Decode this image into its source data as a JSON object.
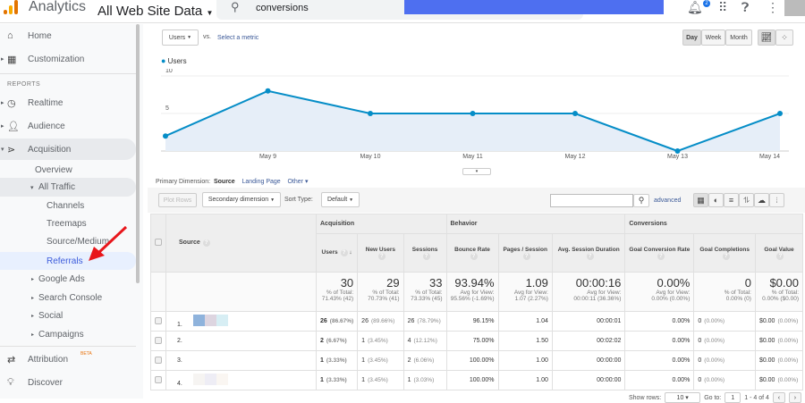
{
  "header": {
    "app_name": "Analytics",
    "property": "All Web Site Data",
    "search_value": "conversions",
    "notification_count": "2"
  },
  "sidebar": {
    "home": "Home",
    "customization": "Customization",
    "reports_heading": "REPORTS",
    "realtime": "Realtime",
    "audience": "Audience",
    "acquisition": "Acquisition",
    "overview": "Overview",
    "all_traffic": "All Traffic",
    "channels": "Channels",
    "treemaps": "Treemaps",
    "source_medium": "Source/Medium",
    "referrals": "Referrals",
    "google_ads": "Google Ads",
    "search_console": "Search Console",
    "social": "Social",
    "campaigns": "Campaigns",
    "attribution": "Attribution",
    "beta": "BETA",
    "discover": "Discover"
  },
  "controls": {
    "metric": "Users",
    "vs": "vs.",
    "select_metric": "Select a metric",
    "day": "Day",
    "week": "Week",
    "month": "Month"
  },
  "chart_data": {
    "type": "area",
    "series": [
      {
        "name": "Users",
        "values": [
          2,
          8,
          5,
          5,
          5,
          0,
          5
        ]
      }
    ],
    "categories": [
      "",
      "May 9",
      "May 10",
      "May 11",
      "May 12",
      "May 13",
      "May 14"
    ],
    "yticks": [
      "5",
      "10"
    ],
    "ylim": [
      0,
      10
    ],
    "color": "#058dc7"
  },
  "dimension": {
    "label": "Primary Dimension:",
    "source": "Source",
    "landing_page": "Landing Page",
    "other": "Other"
  },
  "toolbar": {
    "plot_rows": "Plot Rows",
    "secondary": "Secondary dimension",
    "sort_type": "Sort Type:",
    "sort_value": "Default",
    "advanced": "advanced"
  },
  "table": {
    "groups": [
      "Acquisition",
      "Behavior",
      "Conversions"
    ],
    "source_header": "Source",
    "columns": [
      "Users",
      "New Users",
      "Sessions",
      "Bounce Rate",
      "Pages / Session",
      "Avg. Session Duration",
      "Goal Conversion Rate",
      "Goal Completions",
      "Goal Value"
    ],
    "totals": [
      {
        "value": "30",
        "sub1": "% of Total:",
        "sub2": "71.43% (42)"
      },
      {
        "value": "29",
        "sub1": "% of Total:",
        "sub2": "70.73% (41)"
      },
      {
        "value": "33",
        "sub1": "% of Total:",
        "sub2": "73.33% (45)"
      },
      {
        "value": "93.94%",
        "sub1": "Avg for View:",
        "sub2": "95.56% (-1.69%)"
      },
      {
        "value": "1.09",
        "sub1": "Avg for View:",
        "sub2": "1.07 (2.27%)"
      },
      {
        "value": "00:00:16",
        "sub1": "Avg for View:",
        "sub2": "00:00:11 (36.36%)"
      },
      {
        "value": "0.00%",
        "sub1": "Avg for View:",
        "sub2": "0.00% (0.00%)"
      },
      {
        "value": "0",
        "sub1": "% of Total:",
        "sub2": "0.00% (0)"
      },
      {
        "value": "$0.00",
        "sub1": "% of Total:",
        "sub2": "0.00% ($0.00)"
      }
    ],
    "rows": [
      {
        "idx": "1.",
        "users": "26",
        "users_pct": "(86.67%)",
        "new": "26",
        "new_pct": "(89.66%)",
        "sess": "26",
        "sess_pct": "(78.79%)",
        "bounce": "96.15%",
        "pages": "1.04",
        "dur": "00:00:01",
        "gcr": "0.00%",
        "gc": "0",
        "gc_pct": "(0.00%)",
        "gv": "$0.00",
        "gv_pct": "(0.00%)"
      },
      {
        "idx": "2.",
        "users": "2",
        "users_pct": "(6.67%)",
        "new": "1",
        "new_pct": "(3.45%)",
        "sess": "4",
        "sess_pct": "(12.12%)",
        "bounce": "75.00%",
        "pages": "1.50",
        "dur": "00:02:02",
        "gcr": "0.00%",
        "gc": "0",
        "gc_pct": "(0.00%)",
        "gv": "$0.00",
        "gv_pct": "(0.00%)"
      },
      {
        "idx": "3.",
        "users": "1",
        "users_pct": "(3.33%)",
        "new": "1",
        "new_pct": "(3.45%)",
        "sess": "2",
        "sess_pct": "(6.06%)",
        "bounce": "100.00%",
        "pages": "1.00",
        "dur": "00:00:00",
        "gcr": "0.00%",
        "gc": "0",
        "gc_pct": "(0.00%)",
        "gv": "$0.00",
        "gv_pct": "(0.00%)"
      },
      {
        "idx": "4.",
        "users": "1",
        "users_pct": "(3.33%)",
        "new": "1",
        "new_pct": "(3.45%)",
        "sess": "1",
        "sess_pct": "(3.03%)",
        "bounce": "100.00%",
        "pages": "1.00",
        "dur": "00:00:00",
        "gcr": "0.00%",
        "gc": "0",
        "gc_pct": "(0.00%)",
        "gv": "$0.00",
        "gv_pct": "(0.00%)"
      }
    ]
  },
  "pagination": {
    "show_rows": "Show rows:",
    "rows_value": "10",
    "goto": "Go to:",
    "page": "1",
    "range": "1 - 4 of 4"
  }
}
